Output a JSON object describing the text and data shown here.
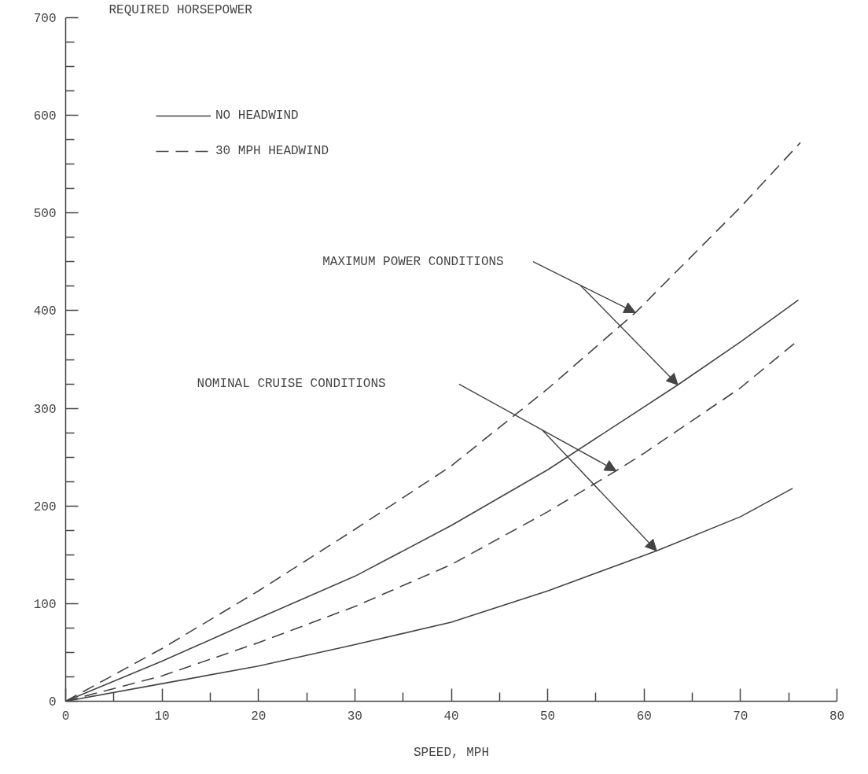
{
  "chart_data": {
    "type": "line",
    "xlabel": "SPEED, MPH",
    "ylabel": "REQUIRED HORSEPOWER",
    "xlim": [
      0,
      80
    ],
    "ylim": [
      0,
      700
    ],
    "xticks": [
      0,
      {
        "value": 5,
        "label": null
      },
      10,
      {
        "value": 15,
        "label": null
      },
      20,
      {
        "value": 25,
        "label": null
      },
      30,
      {
        "value": 35,
        "label": null
      },
      40,
      {
        "value": 45,
        "label": null
      },
      50,
      {
        "value": 55,
        "label": null
      },
      60,
      {
        "value": 65,
        "label": null
      },
      70,
      {
        "value": 75,
        "label": null
      },
      80
    ],
    "yticks": [
      0,
      {
        "value": 25,
        "label": null
      },
      {
        "value": 50,
        "label": null
      },
      {
        "value": 75,
        "label": null
      },
      100,
      {
        "value": 125,
        "label": null
      },
      {
        "value": 150,
        "label": null
      },
      {
        "value": 175,
        "label": null
      },
      200,
      {
        "value": 225,
        "label": null
      },
      {
        "value": 250,
        "label": null
      },
      {
        "value": 275,
        "label": null
      },
      300,
      {
        "value": 325,
        "label": null
      },
      {
        "value": 350,
        "label": null
      },
      {
        "value": 375,
        "label": null
      },
      400,
      {
        "value": 425,
        "label": null
      },
      {
        "value": 450,
        "label": null
      },
      {
        "value": 475,
        "label": null
      },
      500,
      {
        "value": 525,
        "label": null
      },
      {
        "value": 550,
        "label": null
      },
      {
        "value": 575,
        "label": null
      },
      600,
      {
        "value": 625,
        "label": null
      },
      {
        "value": 650,
        "label": null
      },
      {
        "value": 675,
        "label": null
      },
      700
    ],
    "grid": false,
    "legend": "top left",
    "marker": "none",
    "series": [
      {
        "name": "NO HEADWIND",
        "color": "#444444",
        "line_style": "solid",
        "x": [
          0,
          10,
          20,
          30,
          40,
          50,
          63.5,
          70,
          76
        ],
        "values": [
          0,
          41,
          85,
          128,
          180,
          237,
          324,
          368,
          411
        ]
      },
      {
        "name": "30 MPH HEADWIND",
        "color": "#444444",
        "line_style": "dashed",
        "x": [
          0,
          10,
          20,
          30,
          40,
          50,
          59.1,
          70,
          76.2
        ],
        "values": [
          0,
          54,
          113,
          176,
          241,
          320,
          398,
          506,
          572
        ]
      },
      {
        "color": "#444444",
        "line_style": "solid",
        "x": [
          0,
          10,
          20,
          30,
          40,
          50,
          61.3,
          70,
          75.4
        ],
        "values": [
          0,
          18,
          36,
          58,
          81,
          113,
          154,
          189,
          218
        ]
      },
      {
        "color": "#444444",
        "line_style": "dashed",
        "x": [
          0,
          10,
          20,
          30,
          40,
          50,
          57.1,
          60,
          70,
          75.9
        ],
        "values": [
          0,
          26,
          60,
          97,
          140,
          194,
          236,
          254,
          321,
          369
        ]
      }
    ],
    "annotations": [
      "MAXIMUM POWER CONDITIONS",
      "NOMINAL CRUISE CONDITIONS"
    ]
  }
}
